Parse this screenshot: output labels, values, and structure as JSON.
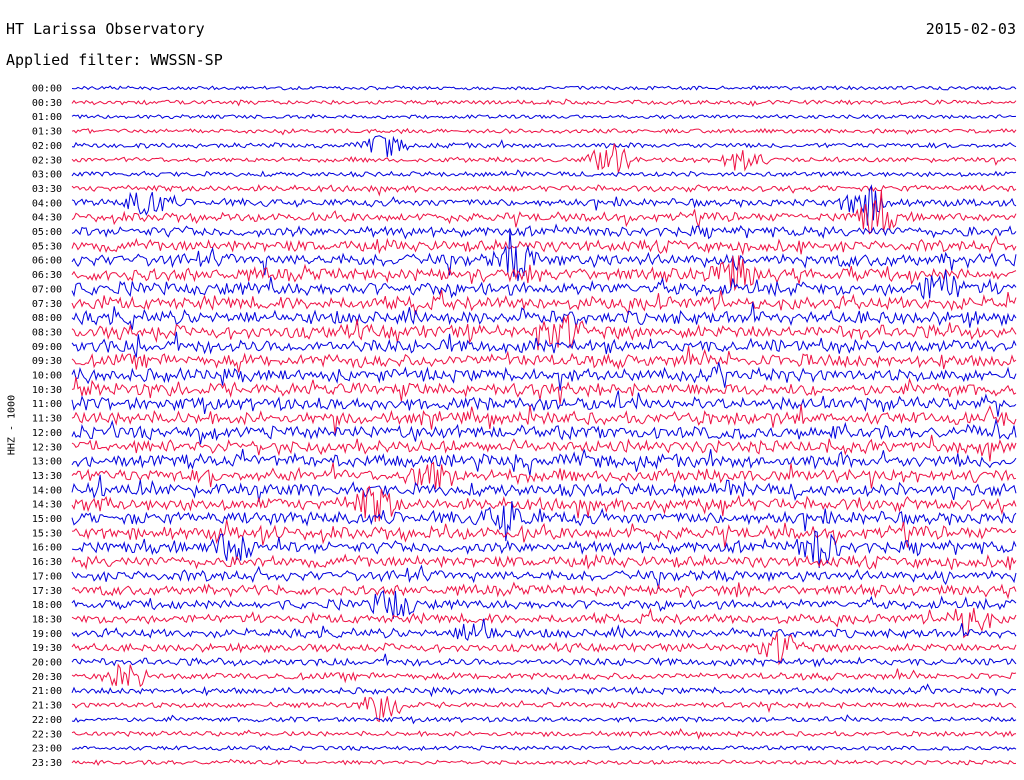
{
  "header": {
    "title": "HT Larissa Observatory",
    "date": "2015-02-03",
    "filter": "Applied filter: WWSSN-SP"
  },
  "chart_data": {
    "type": "line",
    "title": "HT Larissa Observatory",
    "ylabel": "HHZ - 1000",
    "series_colors": [
      "#0000dd",
      "#ee1144"
    ],
    "rows": [
      {
        "label": "00:00",
        "activity": 0.1
      },
      {
        "label": "00:30",
        "activity": 0.15
      },
      {
        "label": "01:00",
        "activity": 0.1
      },
      {
        "label": "01:30",
        "activity": 0.15
      },
      {
        "label": "02:00",
        "activity": 0.2
      },
      {
        "label": "02:30",
        "activity": 0.2
      },
      {
        "label": "03:00",
        "activity": 0.2
      },
      {
        "label": "03:30",
        "activity": 0.3
      },
      {
        "label": "04:00",
        "activity": 0.4
      },
      {
        "label": "04:30",
        "activity": 0.5
      },
      {
        "label": "05:00",
        "activity": 0.6
      },
      {
        "label": "05:30",
        "activity": 0.7
      },
      {
        "label": "06:00",
        "activity": 0.8
      },
      {
        "label": "06:30",
        "activity": 0.8
      },
      {
        "label": "07:00",
        "activity": 0.85
      },
      {
        "label": "07:30",
        "activity": 0.85
      },
      {
        "label": "08:00",
        "activity": 0.85
      },
      {
        "label": "08:30",
        "activity": 0.85
      },
      {
        "label": "09:00",
        "activity": 0.85
      },
      {
        "label": "09:30",
        "activity": 0.8
      },
      {
        "label": "10:00",
        "activity": 0.8
      },
      {
        "label": "10:30",
        "activity": 0.8
      },
      {
        "label": "11:00",
        "activity": 0.8
      },
      {
        "label": "11:30",
        "activity": 0.8
      },
      {
        "label": "12:00",
        "activity": 0.8
      },
      {
        "label": "12:30",
        "activity": 0.8
      },
      {
        "label": "13:00",
        "activity": 0.8
      },
      {
        "label": "13:30",
        "activity": 0.8
      },
      {
        "label": "14:00",
        "activity": 0.8
      },
      {
        "label": "14:30",
        "activity": 0.8
      },
      {
        "label": "15:00",
        "activity": 0.8
      },
      {
        "label": "15:30",
        "activity": 0.8
      },
      {
        "label": "16:00",
        "activity": 0.75
      },
      {
        "label": "16:30",
        "activity": 0.7
      },
      {
        "label": "17:00",
        "activity": 0.65
      },
      {
        "label": "17:30",
        "activity": 0.6
      },
      {
        "label": "18:00",
        "activity": 0.55
      },
      {
        "label": "18:30",
        "activity": 0.55
      },
      {
        "label": "19:00",
        "activity": 0.5
      },
      {
        "label": "19:30",
        "activity": 0.45
      },
      {
        "label": "20:00",
        "activity": 0.4
      },
      {
        "label": "20:30",
        "activity": 0.35
      },
      {
        "label": "21:00",
        "activity": 0.3
      },
      {
        "label": "21:30",
        "activity": 0.25
      },
      {
        "label": "22:00",
        "activity": 0.2
      },
      {
        "label": "22:30",
        "activity": 0.2
      },
      {
        "label": "23:00",
        "activity": 0.15
      },
      {
        "label": "23:30",
        "activity": 0.15
      }
    ],
    "events": [
      {
        "row": "02:00",
        "x": 0.33,
        "amp": 0.9
      },
      {
        "row": "02:30",
        "x": 0.57,
        "amp": 1.2
      },
      {
        "row": "02:30",
        "x": 0.71,
        "amp": 0.9
      },
      {
        "row": "04:00",
        "x": 0.08,
        "amp": 1.1
      },
      {
        "row": "04:00",
        "x": 0.84,
        "amp": 1.5
      },
      {
        "row": "04:30",
        "x": 0.85,
        "amp": 1.3
      },
      {
        "row": "06:00",
        "x": 0.47,
        "amp": 1.2
      },
      {
        "row": "06:30",
        "x": 0.7,
        "amp": 1.3
      },
      {
        "row": "07:00",
        "x": 0.92,
        "amp": 1.2
      },
      {
        "row": "08:30",
        "x": 0.52,
        "amp": 1.2
      },
      {
        "row": "13:30",
        "x": 0.38,
        "amp": 1.2
      },
      {
        "row": "14:30",
        "x": 0.32,
        "amp": 1.3
      },
      {
        "row": "15:00",
        "x": 0.46,
        "amp": 1.2
      },
      {
        "row": "16:00",
        "x": 0.17,
        "amp": 1.1
      },
      {
        "row": "16:00",
        "x": 0.79,
        "amp": 1.2
      },
      {
        "row": "18:00",
        "x": 0.34,
        "amp": 1.1
      },
      {
        "row": "18:30",
        "x": 0.95,
        "amp": 1.3
      },
      {
        "row": "19:00",
        "x": 0.43,
        "amp": 1.0
      },
      {
        "row": "19:30",
        "x": 0.75,
        "amp": 1.1
      },
      {
        "row": "20:30",
        "x": 0.06,
        "amp": 1.0
      },
      {
        "row": "21:30",
        "x": 0.33,
        "amp": 1.3
      }
    ]
  }
}
